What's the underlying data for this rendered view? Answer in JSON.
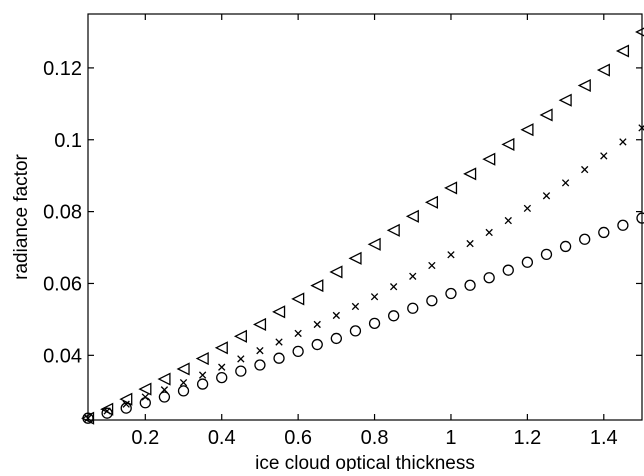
{
  "chart_data": {
    "type": "scatter",
    "title": "",
    "xlabel": "ice cloud optical thickness",
    "ylabel": "radiance factor",
    "xlim": [
      0.05,
      1.5
    ],
    "ylim": [
      0.022,
      0.135
    ],
    "grid": false,
    "legend": "none",
    "x_ticks": [
      {
        "value": 0.2,
        "label": "0.2"
      },
      {
        "value": 0.4,
        "label": "0.4"
      },
      {
        "value": 0.6,
        "label": "0.6"
      },
      {
        "value": 0.8,
        "label": "0.8"
      },
      {
        "value": 1.0,
        "label": "1"
      },
      {
        "value": 1.2,
        "label": "1.2"
      },
      {
        "value": 1.4,
        "label": "1.4"
      }
    ],
    "y_ticks": [
      {
        "value": 0.04,
        "label": "0.04"
      },
      {
        "value": 0.06,
        "label": "0.06"
      },
      {
        "value": 0.08,
        "label": "0.08"
      },
      {
        "value": 0.1,
        "label": "0.1"
      },
      {
        "value": 0.12,
        "label": "0.12"
      }
    ],
    "x": [
      0.05,
      0.1,
      0.15,
      0.2,
      0.25,
      0.3,
      0.35,
      0.4,
      0.45,
      0.5,
      0.55,
      0.6,
      0.65,
      0.7,
      0.75,
      0.8,
      0.85,
      0.9,
      0.95,
      1.0,
      1.05,
      1.1,
      1.15,
      1.2,
      1.25,
      1.3,
      1.35,
      1.4,
      1.45,
      1.5
    ],
    "series": [
      {
        "marker": "triangle-left",
        "values": [
          0.0225,
          0.025,
          0.0278,
          0.0306,
          0.0334,
          0.0362,
          0.0391,
          0.0421,
          0.0453,
          0.0486,
          0.0521,
          0.0557,
          0.0594,
          0.0632,
          0.067,
          0.0709,
          0.0748,
          0.0787,
          0.0826,
          0.0866,
          0.0905,
          0.0946,
          0.0987,
          0.1028,
          0.1069,
          0.111,
          0.1151,
          0.1194,
          0.1247,
          0.13
        ]
      },
      {
        "marker": "x",
        "values": [
          0.0225,
          0.0245,
          0.0264,
          0.0284,
          0.0304,
          0.0324,
          0.0345,
          0.0367,
          0.039,
          0.0413,
          0.0437,
          0.0461,
          0.0486,
          0.0511,
          0.0536,
          0.0563,
          0.0591,
          0.062,
          0.065,
          0.068,
          0.0711,
          0.0742,
          0.0775,
          0.0809,
          0.0844,
          0.088,
          0.0917,
          0.0955,
          0.0994,
          0.1033
        ]
      },
      {
        "marker": "circle",
        "values": [
          0.0225,
          0.0239,
          0.0253,
          0.0268,
          0.0284,
          0.0301,
          0.032,
          0.0338,
          0.0356,
          0.0373,
          0.0392,
          0.0411,
          0.043,
          0.0447,
          0.0468,
          0.0489,
          0.051,
          0.0531,
          0.0552,
          0.0572,
          0.0595,
          0.0616,
          0.0637,
          0.0659,
          0.0681,
          0.0703,
          0.0723,
          0.0742,
          0.0762,
          0.0782
        ]
      }
    ]
  }
}
